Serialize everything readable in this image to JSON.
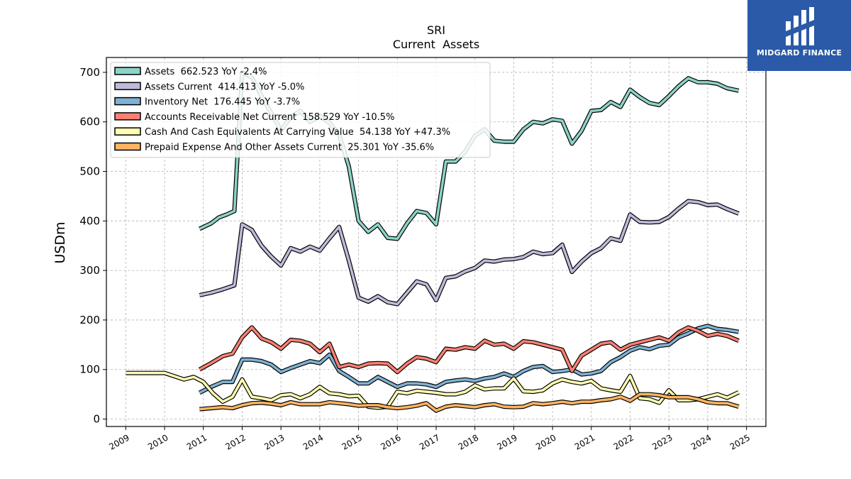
{
  "brand": {
    "name": "MIDGARD FINANCE",
    "color": "#2a5aa8"
  },
  "chart_data": {
    "type": "line",
    "title": "SRI",
    "subtitle": "Current  Assets",
    "ylabel": "USDm",
    "xlabel": "",
    "xlim": [
      2008.5,
      2025.5
    ],
    "ylim": [
      -15,
      730
    ],
    "xticks": [
      "2009",
      "2010",
      "2011",
      "2012",
      "2013",
      "2014",
      "2015",
      "2016",
      "2017",
      "2018",
      "2019",
      "2020",
      "2021",
      "2022",
      "2023",
      "2024",
      "2025"
    ],
    "yticks": [
      0,
      100,
      200,
      300,
      400,
      500,
      600,
      700
    ],
    "grid": true,
    "legend_position": "top-left",
    "series": [
      {
        "name": "Assets  662.523 YoY -2.4%",
        "color": "#8dd3c7",
        "x": [
          2010.9,
          2011.2,
          2011.4,
          2011.6,
          2011.8,
          2012.0,
          2012.25,
          2012.5,
          2012.75,
          2013.0,
          2013.25,
          2013.5,
          2013.75,
          2014.0,
          2014.25,
          2014.5,
          2014.75,
          2015.0,
          2015.25,
          2015.5,
          2015.75,
          2016.0,
          2016.25,
          2016.5,
          2016.75,
          2017.0,
          2017.25,
          2017.5,
          2017.75,
          2018.0,
          2018.25,
          2018.5,
          2018.75,
          2019.0,
          2019.25,
          2019.5,
          2019.75,
          2020.0,
          2020.25,
          2020.5,
          2020.75,
          2021.0,
          2021.25,
          2021.5,
          2021.75,
          2022.0,
          2022.25,
          2022.5,
          2022.75,
          2023.0,
          2023.25,
          2023.5,
          2023.75,
          2024.0,
          2024.25,
          2024.5,
          2024.8
        ],
        "y": [
          384,
          395,
          407,
          413,
          420,
          700,
          690,
          652,
          618,
          583,
          610,
          622,
          600,
          612,
          598,
          575,
          510,
          400,
          378,
          393,
          366,
          364,
          395,
          420,
          416,
          393,
          520,
          520,
          540,
          572,
          585,
          562,
          560,
          560,
          585,
          600,
          597,
          605,
          602,
          556,
          582,
          622,
          624,
          640,
          630,
          665,
          650,
          638,
          634,
          652,
          672,
          688,
          680,
          680,
          677,
          668,
          663
        ]
      },
      {
        "name": "Assets Current  414.413 YoY -5.0%",
        "color": "#bebada",
        "x": [
          2010.9,
          2011.2,
          2011.5,
          2011.8,
          2012.0,
          2012.25,
          2012.5,
          2012.75,
          2013.0,
          2013.25,
          2013.5,
          2013.75,
          2014.0,
          2014.25,
          2014.5,
          2014.75,
          2015.0,
          2015.25,
          2015.5,
          2015.75,
          2016.0,
          2016.25,
          2016.5,
          2016.75,
          2017.0,
          2017.25,
          2017.5,
          2017.75,
          2018.0,
          2018.25,
          2018.5,
          2018.75,
          2019.0,
          2019.25,
          2019.5,
          2019.75,
          2020.0,
          2020.25,
          2020.5,
          2020.75,
          2021.0,
          2021.25,
          2021.5,
          2021.75,
          2022.0,
          2022.25,
          2022.5,
          2022.75,
          2023.0,
          2023.25,
          2023.5,
          2023.75,
          2024.0,
          2024.25,
          2024.5,
          2024.8
        ],
        "y": [
          250,
          255,
          262,
          270,
          393,
          382,
          350,
          328,
          310,
          345,
          338,
          348,
          340,
          365,
          388,
          320,
          245,
          237,
          248,
          236,
          232,
          255,
          278,
          272,
          240,
          285,
          288,
          298,
          305,
          320,
          318,
          322,
          323,
          327,
          338,
          333,
          335,
          352,
          297,
          318,
          335,
          345,
          365,
          360,
          413,
          398,
          397,
          398,
          408,
          425,
          440,
          438,
          432,
          433,
          424,
          415
        ]
      },
      {
        "name": "Inventory Net  176.445 YoY -3.7%",
        "color": "#80b1d3",
        "x": [
          2010.9,
          2011.2,
          2011.5,
          2011.75,
          2012.0,
          2012.25,
          2012.5,
          2012.75,
          2013.0,
          2013.25,
          2013.5,
          2013.75,
          2014.0,
          2014.25,
          2014.5,
          2014.75,
          2015.0,
          2015.25,
          2015.5,
          2015.75,
          2016.0,
          2016.25,
          2016.5,
          2016.75,
          2017.0,
          2017.25,
          2017.5,
          2017.75,
          2018.0,
          2018.25,
          2018.5,
          2018.75,
          2019.0,
          2019.25,
          2019.5,
          2019.75,
          2020.0,
          2020.25,
          2020.5,
          2020.75,
          2021.0,
          2021.25,
          2021.5,
          2021.75,
          2022.0,
          2022.25,
          2022.5,
          2022.75,
          2023.0,
          2023.25,
          2023.5,
          2023.75,
          2024.0,
          2024.25,
          2024.5,
          2024.8
        ],
        "y": [
          53,
          65,
          75,
          75,
          120,
          120,
          117,
          110,
          95,
          103,
          110,
          117,
          113,
          130,
          97,
          85,
          72,
          72,
          85,
          75,
          65,
          72,
          72,
          70,
          65,
          75,
          78,
          80,
          77,
          82,
          85,
          92,
          85,
          97,
          105,
          107,
          95,
          97,
          100,
          90,
          92,
          97,
          115,
          125,
          138,
          145,
          141,
          148,
          150,
          165,
          173,
          183,
          188,
          182,
          180,
          176
        ]
      },
      {
        "name": "Accounts Receivable Net Current  158.529 YoY -10.5%",
        "color": "#fb8072",
        "x": [
          2010.9,
          2011.2,
          2011.5,
          2011.75,
          2012.0,
          2012.25,
          2012.5,
          2012.75,
          2013.0,
          2013.25,
          2013.5,
          2013.75,
          2014.0,
          2014.25,
          2014.5,
          2014.75,
          2015.0,
          2015.25,
          2015.5,
          2015.75,
          2016.0,
          2016.25,
          2016.5,
          2016.75,
          2017.0,
          2017.25,
          2017.5,
          2017.75,
          2018.0,
          2018.25,
          2018.5,
          2018.75,
          2019.0,
          2019.25,
          2019.5,
          2019.75,
          2020.0,
          2020.25,
          2020.5,
          2020.75,
          2021.0,
          2021.25,
          2021.5,
          2021.75,
          2022.0,
          2022.25,
          2022.5,
          2022.75,
          2023.0,
          2023.25,
          2023.5,
          2023.75,
          2024.0,
          2024.25,
          2024.5,
          2024.8
        ],
        "y": [
          100,
          113,
          127,
          132,
          165,
          185,
          163,
          155,
          142,
          160,
          158,
          152,
          135,
          152,
          105,
          110,
          105,
          112,
          113,
          112,
          95,
          112,
          125,
          122,
          115,
          142,
          140,
          145,
          142,
          158,
          150,
          152,
          142,
          157,
          155,
          150,
          145,
          140,
          97,
          128,
          140,
          152,
          155,
          140,
          150,
          155,
          160,
          165,
          158,
          175,
          185,
          178,
          168,
          172,
          168,
          158
        ]
      },
      {
        "name": "Cash And Cash Equivalents At Carrying Value  54.138 YoY +47.3%",
        "color": "#ffffb3",
        "x": [
          2009.0,
          2009.5,
          2010.0,
          2010.5,
          2010.75,
          2011.0,
          2011.25,
          2011.5,
          2011.75,
          2012.0,
          2012.25,
          2012.5,
          2012.75,
          2013.0,
          2013.25,
          2013.5,
          2013.75,
          2014.0,
          2014.25,
          2014.5,
          2014.75,
          2015.0,
          2015.25,
          2015.5,
          2015.75,
          2016.0,
          2016.25,
          2016.5,
          2016.75,
          2017.0,
          2017.25,
          2017.5,
          2017.75,
          2018.0,
          2018.25,
          2018.5,
          2018.75,
          2019.0,
          2019.25,
          2019.5,
          2019.75,
          2020.0,
          2020.25,
          2020.5,
          2020.75,
          2021.0,
          2021.25,
          2021.5,
          2021.75,
          2022.0,
          2022.25,
          2022.5,
          2022.75,
          2023.0,
          2023.25,
          2023.5,
          2023.75,
          2024.0,
          2024.25,
          2024.5,
          2024.8
        ],
        "y": [
          93,
          93,
          93,
          80,
          85,
          75,
          52,
          35,
          45,
          80,
          45,
          42,
          38,
          48,
          50,
          42,
          50,
          65,
          52,
          50,
          46,
          47,
          25,
          23,
          25,
          55,
          52,
          57,
          55,
          53,
          50,
          50,
          55,
          68,
          60,
          62,
          62,
          82,
          56,
          55,
          58,
          72,
          80,
          75,
          72,
          77,
          62,
          58,
          55,
          87,
          42,
          40,
          33,
          58,
          38,
          38,
          40,
          45,
          50,
          43,
          54
        ]
      },
      {
        "name": "Prepaid Expense And Other Assets Current  25.301 YoY -35.6%",
        "color": "#fdb462",
        "x": [
          2010.9,
          2011.2,
          2011.5,
          2011.75,
          2012.0,
          2012.25,
          2012.5,
          2012.75,
          2013.0,
          2013.25,
          2013.5,
          2013.75,
          2014.0,
          2014.25,
          2014.5,
          2014.75,
          2015.0,
          2015.25,
          2015.5,
          2015.75,
          2016.0,
          2016.25,
          2016.5,
          2016.75,
          2017.0,
          2017.25,
          2017.5,
          2017.75,
          2018.0,
          2018.25,
          2018.5,
          2018.75,
          2019.0,
          2019.25,
          2019.5,
          2019.75,
          2020.0,
          2020.25,
          2020.5,
          2020.75,
          2021.0,
          2021.25,
          2021.5,
          2021.75,
          2022.0,
          2022.25,
          2022.5,
          2022.75,
          2023.0,
          2023.25,
          2023.5,
          2023.75,
          2024.0,
          2024.25,
          2024.5,
          2024.8
        ],
        "y": [
          20,
          22,
          24,
          22,
          28,
          32,
          33,
          31,
          28,
          34,
          30,
          30,
          30,
          34,
          32,
          30,
          27,
          28,
          28,
          24,
          22,
          24,
          27,
          32,
          17,
          25,
          28,
          26,
          24,
          28,
          30,
          25,
          24,
          25,
          32,
          30,
          32,
          35,
          32,
          35,
          35,
          38,
          40,
          45,
          37,
          50,
          50,
          48,
          44,
          44,
          44,
          40,
          34,
          32,
          32,
          25
        ]
      }
    ]
  }
}
